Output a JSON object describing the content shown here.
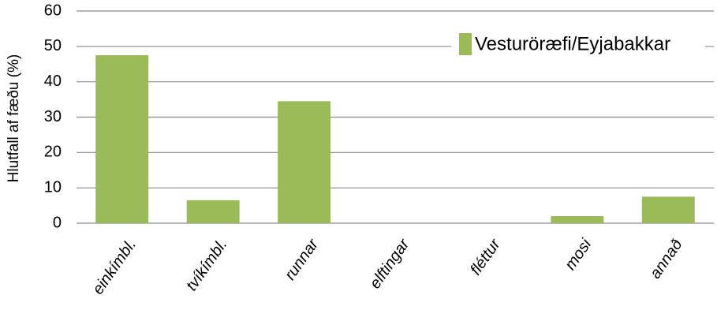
{
  "chart_data": {
    "type": "bar",
    "y_label": "Hlutfall af fæðu (%)",
    "categories": [
      "einkímbl.",
      "tvíkímbl.",
      "runnar",
      "elftingar",
      "fléttur",
      "mosi",
      "annað"
    ],
    "series": [
      {
        "name": "Vesturöræfi/Eyjabakkar",
        "color": "#9bbb59",
        "values": [
          47.5,
          6.5,
          34.5,
          0,
          0,
          2,
          7.5
        ]
      }
    ],
    "ylim": [
      0,
      60
    ],
    "yticks": [
      0,
      10,
      20,
      30,
      40,
      50,
      60
    ],
    "grid": true,
    "legend": "top-right"
  }
}
